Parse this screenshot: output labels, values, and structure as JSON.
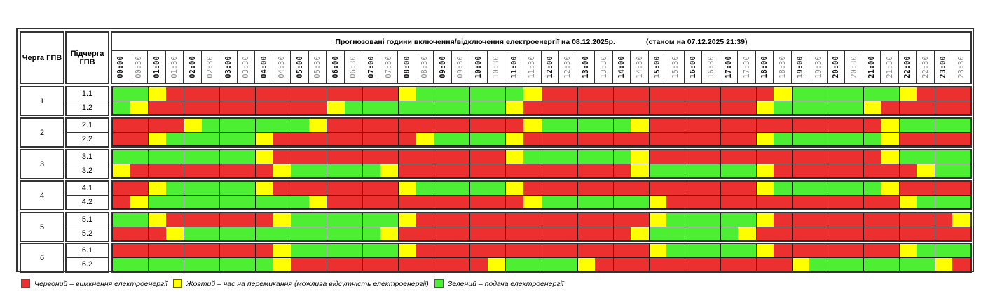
{
  "header": {
    "queue": "Черга ГПВ",
    "subqueue": "Підчерга ГПВ",
    "title": "Прогнозовані години включення/відключення електроенергії на 08.12.2025р.",
    "status": "(станом на 07.12.2025 21:39)"
  },
  "times": [
    "00:00",
    "00:30",
    "01:00",
    "01:30",
    "02:00",
    "02:30",
    "03:00",
    "03:30",
    "04:00",
    "04:30",
    "05:00",
    "05:30",
    "06:00",
    "06:30",
    "07:00",
    "07:30",
    "08:00",
    "08:30",
    "09:00",
    "09:30",
    "10:00",
    "10:30",
    "11:00",
    "11:30",
    "12:00",
    "12:30",
    "13:00",
    "13:30",
    "14:00",
    "14:30",
    "15:00",
    "15:30",
    "16:00",
    "16:30",
    "17:00",
    "17:30",
    "18:00",
    "18:30",
    "19:00",
    "19:30",
    "20:00",
    "20:30",
    "21:00",
    "21:30",
    "22:00",
    "22:30",
    "23:00",
    "23:30"
  ],
  "colors": {
    "R": "#ec3030",
    "Y": "#ffff00",
    "G": "#4def32"
  },
  "groups": [
    {
      "queue": "1",
      "subs": [
        {
          "name": "1.1",
          "slots": "GGYRRRRRRRRRRRRRYGGGGGGYRRRRRRRRRRRRRYGGGGGGYRRR"
        },
        {
          "name": "1.2",
          "slots": "GYRRRRRRRRRRYGGGGGGGGGYRRRRRRRRRRRRRYGGGGGYRRRRR"
        }
      ]
    },
    {
      "queue": "2",
      "subs": [
        {
          "name": "2.1",
          "slots": "RRRRYGGGGGGYRRRRRRRRRRRYGGGGGYRRRRRRRRRRRRRYGGGG"
        },
        {
          "name": "2.2",
          "slots": "RRYGGGGGYRRRRRRRRYGGGGYRRRRRRRRRRRRRYGGGGGGYRRRR"
        }
      ]
    },
    {
      "queue": "3",
      "subs": [
        {
          "name": "3.1",
          "slots": "GGGGGGGGYRRRRRRRRRRRRRYGGGGGGYRRRRRRRRRRRRRYGGGG"
        },
        {
          "name": "3.2",
          "slots": "YRRRRRRRRYGGGGGYRRRRRRRRRRRRRYGGGGGGYRRRRRRRRYGG"
        }
      ]
    },
    {
      "queue": "4",
      "subs": [
        {
          "name": "4.1",
          "slots": "RRYGGGGGYRRRRRRRYGGGGGYRRRRRRRRRRRRRYGGGGGGYRRRR"
        },
        {
          "name": "4.2",
          "slots": "RYGGGGGGGGGYRRRRRRRRRRRYGGGGGGYRRRRRRRRRRRRRYGGG"
        }
      ]
    },
    {
      "queue": "5",
      "subs": [
        {
          "name": "5.1",
          "slots": "GGYRRRRRRYGGGGGGYRRRRRRRRRRRRRYGGGGGYRRRRRRRRRRY"
        },
        {
          "name": "5.2",
          "slots": "RRRYGGGGGGGGGGGYRRRRRRRRRRRRRYGGGGGYRRRRRRRRRRRR"
        }
      ]
    },
    {
      "queue": "6",
      "subs": [
        {
          "name": "6.1",
          "slots": "RRRRRRRRRYGGGGGGYRRRRRRRRRRRRRYGGGGGYRRRRRRRYGGG"
        },
        {
          "name": "6.2",
          "slots": "GGGGGGGGGYRRRRRRRRRRRYGGGGYRRRRRRRRRRRYGGGGGGGYR"
        }
      ]
    }
  ],
  "legend": [
    {
      "key": "R",
      "label": "Червоний – вимкнення електроенергії"
    },
    {
      "key": "Y",
      "label": "Жовтий – час на перемикання (можлива відсутність електроенергії)"
    },
    {
      "key": "G",
      "label": "Зелений – подача електроенергії"
    }
  ]
}
